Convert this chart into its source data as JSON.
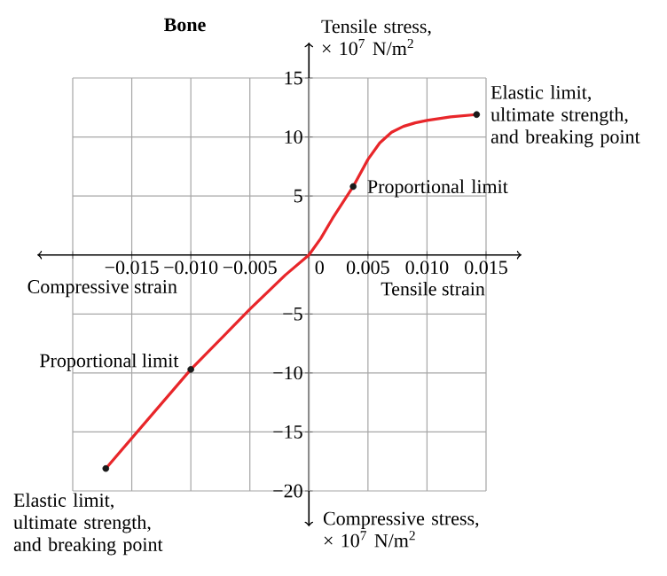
{
  "chart_data": {
    "type": "line",
    "title": "Bone",
    "xlabel": "Tensile strain",
    "ylabel": "Tensile stress, × 10$^{7}$ N/m$^{2}$",
    "series": [
      {
        "color": "#e8262a",
        "marker": "none",
        "line_style": "solid",
        "x": [
          -0.0172,
          -0.01,
          -0.005,
          -0.002,
          0,
          0.001,
          0.002,
          0.00375,
          0.005,
          0.006,
          0.007,
          0.008,
          0.009,
          0.01,
          0.012,
          0.0142
        ],
        "values": [
          -18.1,
          -9.7,
          -4.6,
          -1.7,
          0,
          1.4,
          3.1,
          5.8,
          8.1,
          9.5,
          10.4,
          10.9,
          11.2,
          11.4,
          11.7,
          11.9
        ]
      },
      {
        "type": "scatter",
        "color": "#1a1a1a",
        "marker": "circle",
        "x": [
          0.00375,
          0.0142,
          -0.01,
          -0.0172
        ],
        "values": [
          5.8,
          11.9,
          -9.7,
          -18.1
        ]
      }
    ],
    "xlim": [
      -0.02,
      0.015
    ],
    "ylim": [
      -20,
      15
    ],
    "xticks": [
      {
        "value": -0.02,
        "label": null
      },
      {
        "value": -0.015,
        "label": "−0.015"
      },
      {
        "value": -0.01,
        "label": "−0.010"
      },
      {
        "value": -0.005,
        "label": "−0.005"
      },
      {
        "value": 0,
        "label": "0"
      },
      {
        "value": 0.005,
        "label": "0.005"
      },
      {
        "value": 0.01,
        "label": "0.010"
      },
      {
        "value": 0.015,
        "label": "0.015"
      }
    ],
    "yticks": [
      {
        "value": -20,
        "label": "−20"
      },
      {
        "value": -15,
        "label": "−15"
      },
      {
        "value": -10,
        "label": "−10"
      },
      {
        "value": -5,
        "label": "−5"
      },
      {
        "value": 0,
        "label": null
      },
      5,
      10,
      15
    ],
    "grid": true,
    "annotations": [
      {
        "text": "Proportional limit",
        "x": 0.00375,
        "y": 5.8
      },
      {
        "text": "Elastic limit, ultimate strength, and breaking point",
        "x": 0.0142,
        "y": 11.9
      },
      {
        "text": "Proportional limit",
        "x": -0.01,
        "y": -9.7
      },
      {
        "text": "Elastic limit, ultimate strength, and breaking point",
        "x": -0.0172,
        "y": -18.1
      },
      "Compressive strain",
      "Compressive stress, × 10$^{7}$ N/m$^{2}$"
    ]
  }
}
